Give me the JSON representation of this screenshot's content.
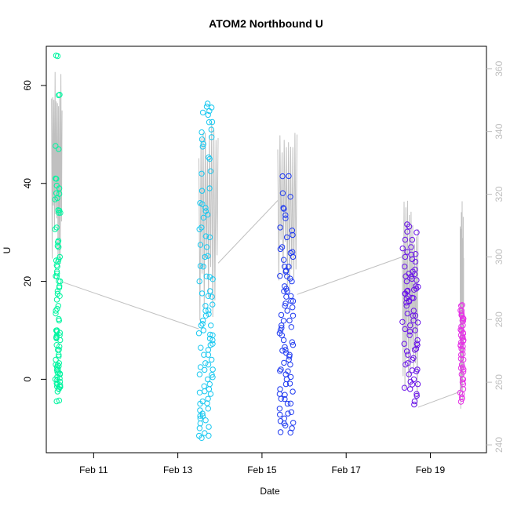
{
  "chart_data": {
    "type": "scatter",
    "title": "ATOM2 Northbound U",
    "xlabel": "Date",
    "ylabel": "U",
    "x_ticks": [
      "Feb 11",
      "Feb 13",
      "Feb 15",
      "Feb 17",
      "Feb 19"
    ],
    "y_ticks_left": [
      0,
      20,
      40,
      60
    ],
    "y_ticks_right": [
      240,
      260,
      280,
      300,
      320,
      340,
      360
    ],
    "xlim": [
      "Feb 09 21:00",
      "Feb 20 08:00"
    ],
    "ylim_left": [
      -15,
      68
    ],
    "ylim_right": [
      237.5,
      367.2
    ],
    "right_axis_color": "#bfbfbf",
    "line_color": "#c0c0c0",
    "grid": false,
    "legend": "none",
    "series": [
      {
        "color": "#00f5a0",
        "time_range": [
          "Feb 10 02:00",
          "Feb 10 05:00"
        ],
        "points_u": [
          66,
          58,
          47,
          41,
          39,
          38,
          37,
          34,
          34,
          31,
          28,
          27,
          25,
          24,
          23,
          22,
          21,
          20,
          19,
          18,
          17,
          15,
          14,
          12,
          10,
          9.5,
          9,
          8.5,
          8,
          7,
          6,
          5,
          4,
          3,
          2.5,
          2,
          1.5,
          1,
          0.5,
          0,
          -0.5,
          -1,
          -1.5,
          -2,
          -2.5,
          -4.5
        ]
      },
      {
        "color": "#19c8f0",
        "time_range": [
          "Feb 13 12:00",
          "Feb 13 20:00"
        ],
        "points_u": [
          56.3,
          55.5,
          54,
          52.5,
          51,
          49,
          47.5,
          45,
          42,
          39,
          36,
          35,
          33,
          31,
          29,
          27,
          25,
          23,
          21,
          20,
          18,
          17,
          15,
          14,
          13,
          12,
          11,
          10,
          9,
          8,
          7,
          6,
          5,
          4,
          3,
          2,
          1,
          0,
          -1,
          -2,
          -3,
          -4,
          -5,
          -6,
          -7,
          -8,
          -9,
          -10,
          -11,
          -12
        ]
      },
      {
        "color": "#1f3af0",
        "time_range": [
          "Feb 15 10:00",
          "Feb 15 18:00"
        ],
        "points_u": [
          41.5,
          38,
          35,
          33.5,
          31,
          29,
          27,
          26,
          25,
          23,
          22,
          21,
          20,
          19,
          18,
          17,
          16,
          15,
          14,
          13,
          12,
          11,
          10,
          9,
          8,
          7,
          6,
          5,
          4,
          3,
          2,
          1,
          0,
          -1,
          -2,
          -3,
          -4,
          -5,
          -6,
          -7,
          -8,
          -9,
          -10,
          -10.8
        ]
      },
      {
        "color": "#6a14e8",
        "time_range": [
          "Feb 18 08:00",
          "Feb 18 17:00"
        ],
        "points_u": [
          31.2,
          30,
          28.5,
          27,
          26,
          25,
          24,
          23,
          22,
          21,
          20.5,
          20,
          19,
          18.5,
          18,
          17.5,
          17,
          16.5,
          16,
          15,
          14,
          13,
          12,
          11,
          10,
          9,
          8,
          7,
          6,
          5,
          4,
          3,
          2,
          1,
          0,
          -1,
          -2,
          -3,
          -4.5
        ]
      },
      {
        "color": "#e632e6",
        "time_range": [
          "Feb 19 17:00",
          "Feb 19 19:00"
        ],
        "points_u": [
          15,
          14,
          13.5,
          13,
          12.5,
          12,
          11,
          10,
          9.5,
          9,
          8.5,
          8,
          7.5,
          7,
          6,
          5,
          4,
          3,
          2,
          1,
          0,
          -1,
          -2,
          -3,
          -4
        ]
      }
    ],
    "secondary_line": {
      "axis": "right",
      "spikes_right": [
        {
          "time_range": [
            "Feb 10 00:00",
            "Feb 10 06:00"
          ],
          "max": 362,
          "min": 292
        },
        {
          "time_range": [
            "Feb 13 12:00",
            "Feb 13 23:00"
          ],
          "max": 346,
          "min": 277
        },
        {
          "time_range": [
            "Feb 15 09:00",
            "Feb 15 20:00"
          ],
          "max": 345,
          "min": 288
        },
        {
          "time_range": [
            "Feb 18 08:00",
            "Feb 18 17:00"
          ],
          "max": 318,
          "min": 252
        },
        {
          "time_range": [
            "Feb 19 17:00",
            "Feb 19 19:00"
          ],
          "max": 318,
          "min": 244
        }
      ],
      "gap_segments_right": [
        {
          "from": [
            "Feb 10 06:00",
            292
          ],
          "to": [
            "Feb 13 12:00",
            277
          ]
        },
        {
          "from": [
            "Feb 13 23:00",
            298
          ],
          "to": [
            "Feb 15 09:00",
            318
          ]
        },
        {
          "from": [
            "Feb 15 20:00",
            288
          ],
          "to": [
            "Feb 18 08:00",
            300
          ]
        },
        {
          "from": [
            "Feb 18 17:00",
            252
          ],
          "to": [
            "Feb 19 17:00",
            257
          ]
        }
      ]
    }
  }
}
